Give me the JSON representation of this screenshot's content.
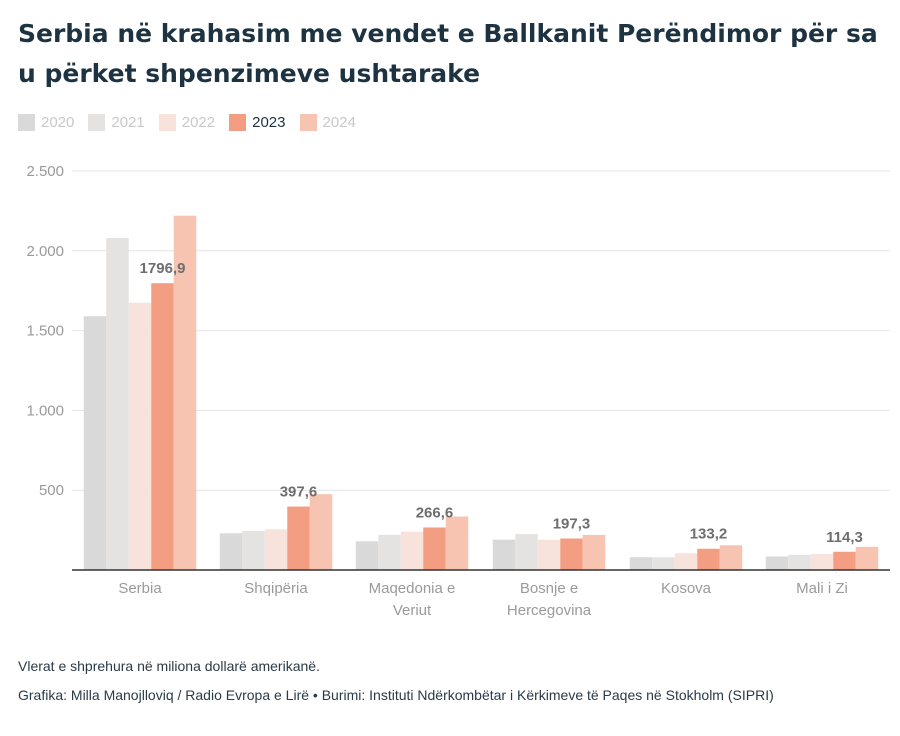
{
  "chart_data": {
    "type": "bar",
    "title": "Serbia në krahasim me vendet e Ballkanit Perëndimor për sa u përket shpenzimeve ushtarake",
    "categories": [
      [
        "Serbia"
      ],
      [
        "Shqipëria"
      ],
      [
        "Maqedonia e",
        "Veriut"
      ],
      [
        "Bosnje e",
        "Hercegovina"
      ],
      [
        "Kosova"
      ],
      [
        "Mali i Zi"
      ]
    ],
    "series": [
      {
        "name": "2020",
        "color": "#d9d9d9",
        "values": [
          1590,
          230,
          180,
          190,
          80,
          85
        ]
      },
      {
        "name": "2021",
        "color": "#e5e2e2",
        "values": [
          2080,
          245,
          220,
          225,
          80,
          95
        ]
      },
      {
        "name": "2022",
        "color": "#f8e2dc",
        "values": [
          1675,
          255,
          240,
          190,
          105,
          100
        ]
      },
      {
        "name": "2023",
        "color": "#f39e82",
        "values": [
          1796.9,
          397.6,
          266.6,
          197.3,
          133.2,
          114.3
        ],
        "highlight": true
      },
      {
        "name": "2024",
        "color": "#f7c4b1",
        "values": [
          2220,
          475,
          335,
          220,
          155,
          145
        ]
      }
    ],
    "data_labels": [
      "1796,9",
      "397,6",
      "266,6",
      "197,3",
      "133,2",
      "114,3"
    ],
    "yticks": [
      500,
      1000,
      1500,
      2000,
      2500
    ],
    "ytick_labels": [
      "500",
      "1.000",
      "1.500",
      "2.000",
      "2.500"
    ],
    "ylim": [
      0,
      2500
    ],
    "xlabel": "",
    "ylabel": "",
    "grid": true,
    "legend_position": "top-left"
  },
  "footer": {
    "note": "Vlerat e shprehura në miliona dollarë amerikanë.",
    "credit": "Grafika: Milla Manojlloviq / Radio Evropa e Lirë • Burimi: Instituti Ndërkombëtar i Kërkimeve të Paqes në Stokholm (SIPRI)"
  },
  "colors": {
    "title": "#1d3341",
    "axis_text": "#9a9a9a",
    "grid": "#e4e4e4",
    "baseline": "#333333"
  }
}
